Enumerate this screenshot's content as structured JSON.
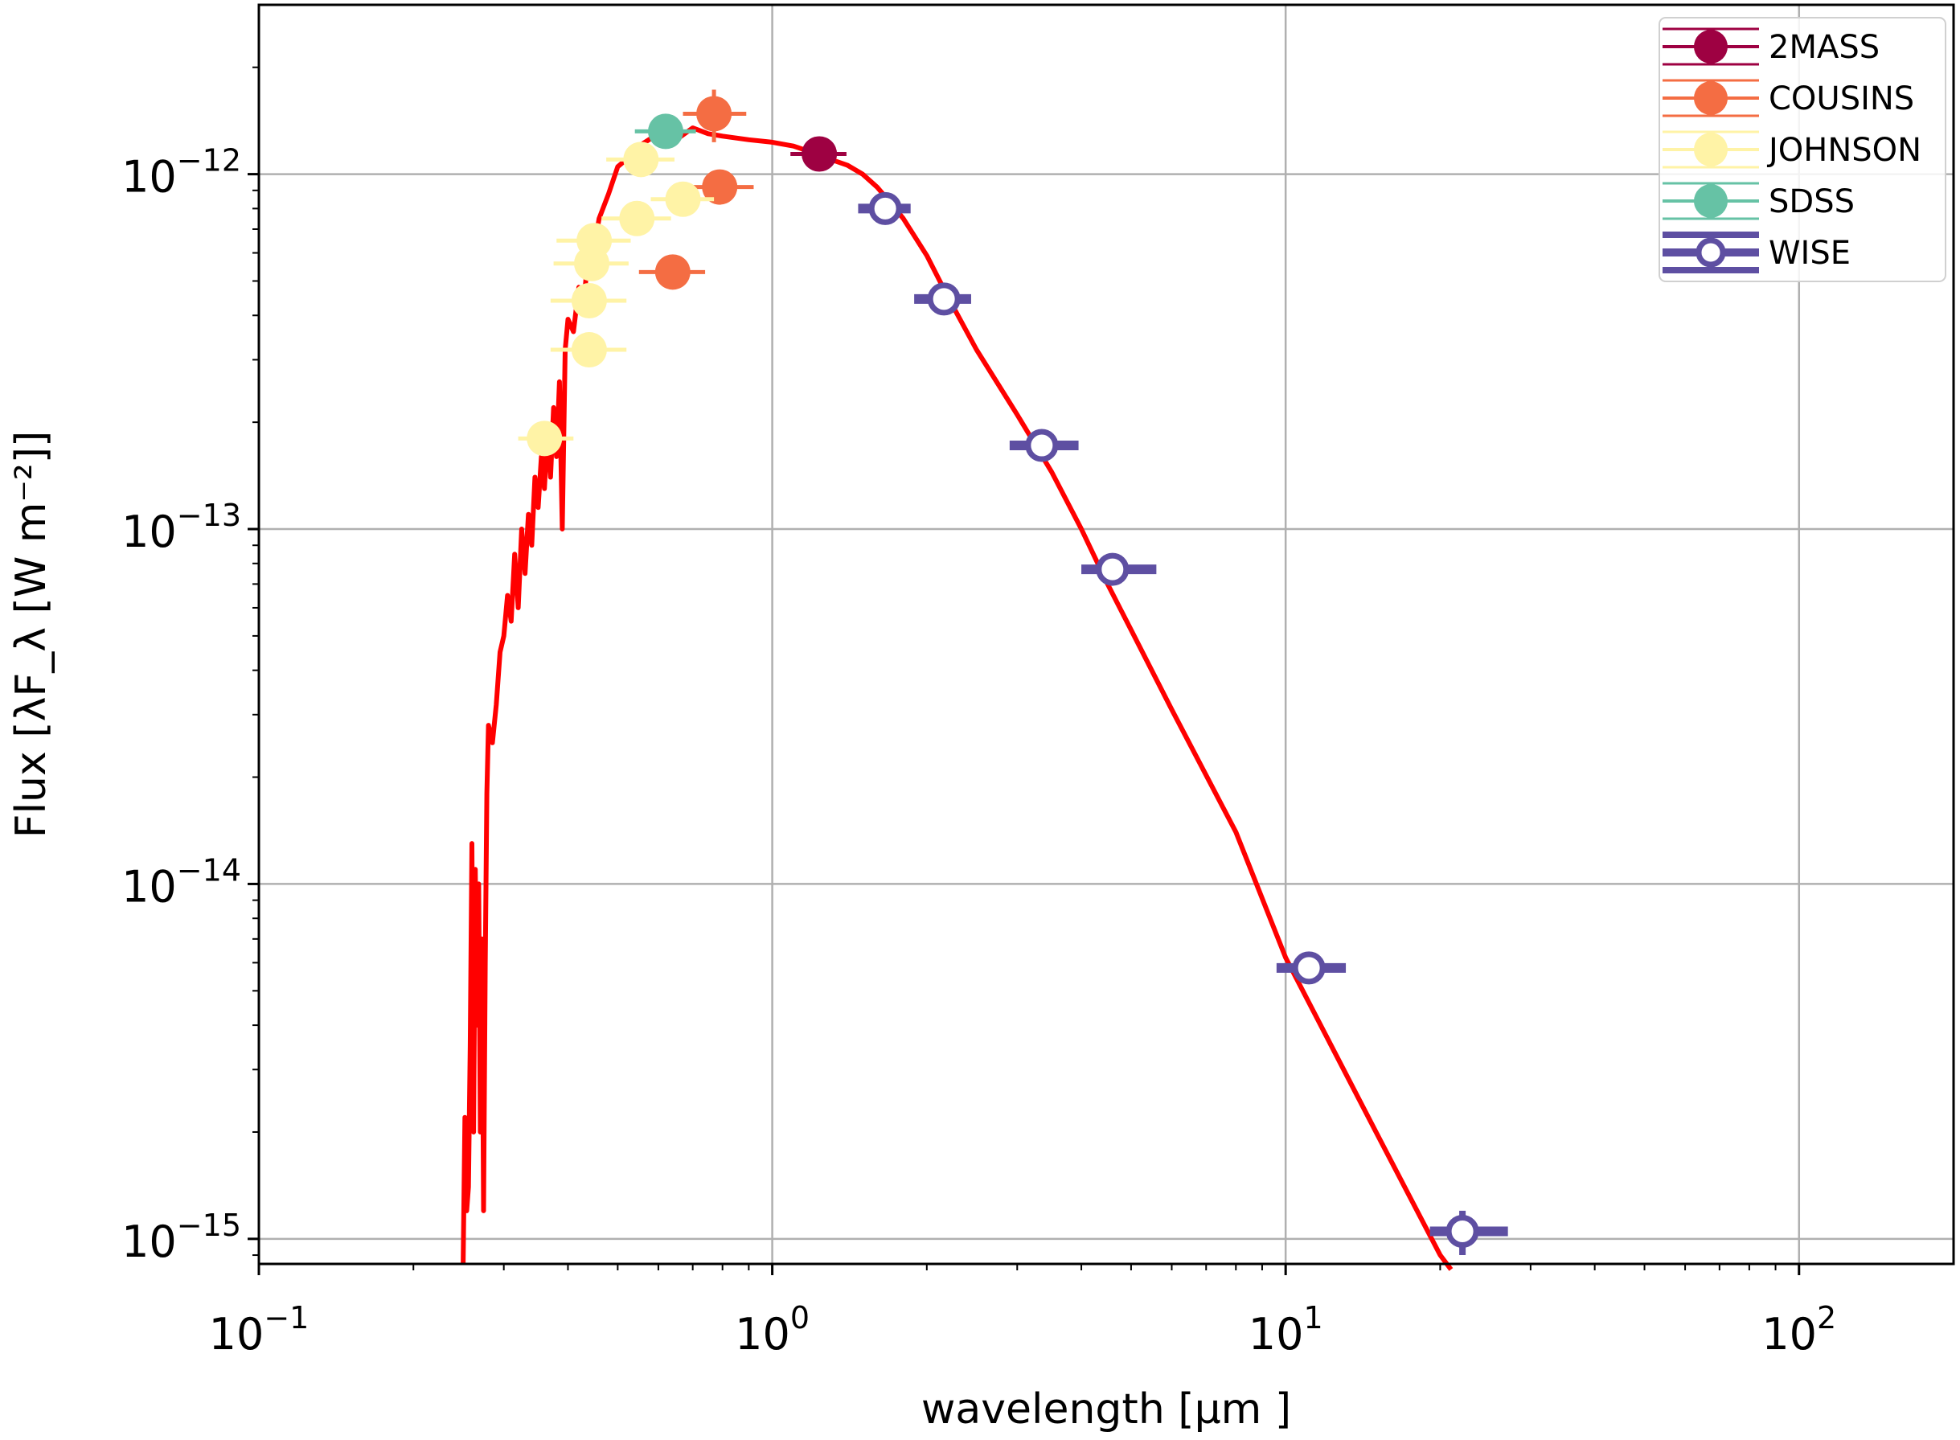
{
  "chart_data": {
    "type": "scatter",
    "xlabel": "wavelength [μm ]",
    "ylabel": "Flux [λF_λ [W  m⁻²]]",
    "xscale": "log",
    "yscale": "log",
    "xlim": [
      0.1,
      200
    ],
    "ylim": [
      8.5e-16,
      3e-12
    ],
    "grid": true,
    "legend_position": "top-right",
    "x_ticks": [
      {
        "base": "10",
        "exp": "−1",
        "value": 0.1
      },
      {
        "base": "10",
        "exp": "0",
        "value": 1
      },
      {
        "base": "10",
        "exp": "1",
        "value": 10
      },
      {
        "base": "10",
        "exp": "2",
        "value": 100
      }
    ],
    "y_ticks": [
      {
        "base": "10",
        "exp": "−12",
        "value": 1e-12
      },
      {
        "base": "10",
        "exp": "−13",
        "value": 1e-13
      },
      {
        "base": "10",
        "exp": "−14",
        "value": 1e-14
      },
      {
        "base": "10",
        "exp": "−15",
        "value": 1e-15
      }
    ],
    "series": [
      {
        "name": "2MASS",
        "color": "#9e0142",
        "marker": "filled",
        "points": [
          {
            "x": 1.235,
            "y": 1.14e-12,
            "xerr": [
              0.15,
              0.16
            ],
            "yerr": 5e-14
          }
        ]
      },
      {
        "name": "COUSINS",
        "color": "#f46d43",
        "marker": "filled",
        "points": [
          {
            "x": 0.64,
            "y": 5.3e-13,
            "xerr": [
              0.09,
              0.1
            ],
            "yerr": 3e-14
          },
          {
            "x": 0.79,
            "y": 9.2e-13,
            "xerr": [
              0.1,
              0.13
            ],
            "yerr": 8e-14
          },
          {
            "x": 0.77,
            "y": 1.48e-12,
            "xerr": [
              0.1,
              0.12
            ],
            "yerr": 2.5e-13
          }
        ]
      },
      {
        "name": "JOHNSON",
        "color": "#fff3a6",
        "marker": "filled",
        "points": [
          {
            "x": 0.36,
            "y": 1.8e-13,
            "xerr": [
              0.04,
              0.05
            ],
            "yerr": 1.5e-14
          },
          {
            "x": 0.44,
            "y": 3.2e-13,
            "xerr": [
              0.07,
              0.08
            ],
            "yerr": 3e-14
          },
          {
            "x": 0.44,
            "y": 4.4e-13,
            "xerr": [
              0.07,
              0.08
            ],
            "yerr": 4e-14
          },
          {
            "x": 0.445,
            "y": 5.6e-13,
            "xerr": [
              0.07,
              0.08
            ],
            "yerr": 5e-14
          },
          {
            "x": 0.45,
            "y": 6.5e-13,
            "xerr": [
              0.07,
              0.08
            ],
            "yerr": 5e-14
          },
          {
            "x": 0.545,
            "y": 7.5e-13,
            "xerr": [
              0.08,
              0.09
            ],
            "yerr": 6e-14
          },
          {
            "x": 0.555,
            "y": 1.1e-12,
            "xerr": [
              0.08,
              0.09
            ],
            "yerr": 1e-13
          },
          {
            "x": 0.67,
            "y": 8.5e-13,
            "xerr": [
              0.09,
              0.1
            ],
            "yerr": 6e-14
          }
        ]
      },
      {
        "name": "SDSS",
        "color": "#66c2a5",
        "marker": "filled",
        "points": [
          {
            "x": 0.62,
            "y": 1.32e-12,
            "xerr": [
              0.08,
              0.09
            ],
            "yerr": 1e-13
          }
        ]
      },
      {
        "name": "WISE",
        "color": "#5e4fa2",
        "marker": "open",
        "points": [
          {
            "x": 1.66,
            "y": 8e-13,
            "xerr": [
              0.19,
              0.2
            ],
            "yerr": 3e-14
          },
          {
            "x": 2.16,
            "y": 4.45e-13,
            "xerr": [
              0.27,
              0.28
            ],
            "yerr": 2e-14
          },
          {
            "x": 3.35,
            "y": 1.72e-13,
            "xerr": [
              0.45,
              0.6
            ],
            "yerr": 8e-15
          },
          {
            "x": 4.6,
            "y": 7.7e-14,
            "xerr": [
              0.6,
              1.0
            ],
            "yerr": 3e-15
          },
          {
            "x": 11.1,
            "y": 5.8e-15,
            "xerr": [
              1.5,
              2.0
            ],
            "yerr": 2e-16
          },
          {
            "x": 22.1,
            "y": 1.05e-15,
            "xerr": [
              3.0,
              5.0
            ],
            "yerr": 1.5e-16
          }
        ]
      }
    ],
    "model_curve": {
      "color": "#ff0000",
      "x": [
        0.25,
        0.252,
        0.254,
        0.256,
        0.258,
        0.26,
        0.262,
        0.264,
        0.266,
        0.268,
        0.27,
        0.272,
        0.274,
        0.276,
        0.278,
        0.28,
        0.285,
        0.29,
        0.295,
        0.3,
        0.305,
        0.31,
        0.315,
        0.32,
        0.325,
        0.33,
        0.335,
        0.34,
        0.345,
        0.35,
        0.355,
        0.36,
        0.365,
        0.37,
        0.375,
        0.38,
        0.385,
        0.39,
        0.395,
        0.4,
        0.41,
        0.42,
        0.43,
        0.44,
        0.45,
        0.46,
        0.48,
        0.5,
        0.52,
        0.55,
        0.6,
        0.65,
        0.7,
        0.75,
        0.8,
        0.9,
        1.0,
        1.1,
        1.2,
        1.3,
        1.4,
        1.5,
        1.6,
        1.7,
        1.8,
        2.0,
        2.2,
        2.5,
        3.0,
        3.5,
        4.0,
        4.5,
        5.0,
        6.0,
        8.0,
        10.0,
        15.0,
        20.0,
        21.0
      ],
      "y": [
        8.5e-16,
        2.2e-15,
        1.2e-15,
        1.4e-15,
        3.5e-15,
        1.3e-14,
        2e-15,
        1.1e-14,
        4e-15,
        1e-14,
        2e-15,
        7e-15,
        1.2e-15,
        6e-15,
        1.8e-14,
        2.8e-14,
        2.5e-14,
        3.2e-14,
        4.5e-14,
        5e-14,
        6.5e-14,
        5.5e-14,
        8.5e-14,
        6e-14,
        1e-13,
        7.5e-14,
        1.1e-13,
        9e-14,
        1.4e-13,
        1.15e-13,
        1.6e-13,
        1.3e-13,
        1.9e-13,
        1.4e-13,
        2.2e-13,
        1.6e-13,
        2.6e-13,
        1e-13,
        3.2e-13,
        3.9e-13,
        3.6e-13,
        4.8e-13,
        4.4e-13,
        6.5e-13,
        6.2e-13,
        7.5e-13,
        8.8e-13,
        1.05e-12,
        1.1e-12,
        1.2e-12,
        1.3e-12,
        1.25e-12,
        1.35e-12,
        1.3e-12,
        1.28e-12,
        1.25e-12,
        1.23e-12,
        1.2e-12,
        1.15e-12,
        1.1e-12,
        1.06e-12,
        1e-12,
        9.2e-13,
        8.3e-13,
        7.5e-13,
        5.9e-13,
        4.5e-13,
        3.2e-13,
        2.1e-13,
        1.45e-13,
        1e-13,
        7e-14,
        5.2e-14,
        3.1e-14,
        1.4e-14,
        6.2e-15,
        2e-15,
        9e-16,
        8.2e-16
      ]
    }
  }
}
